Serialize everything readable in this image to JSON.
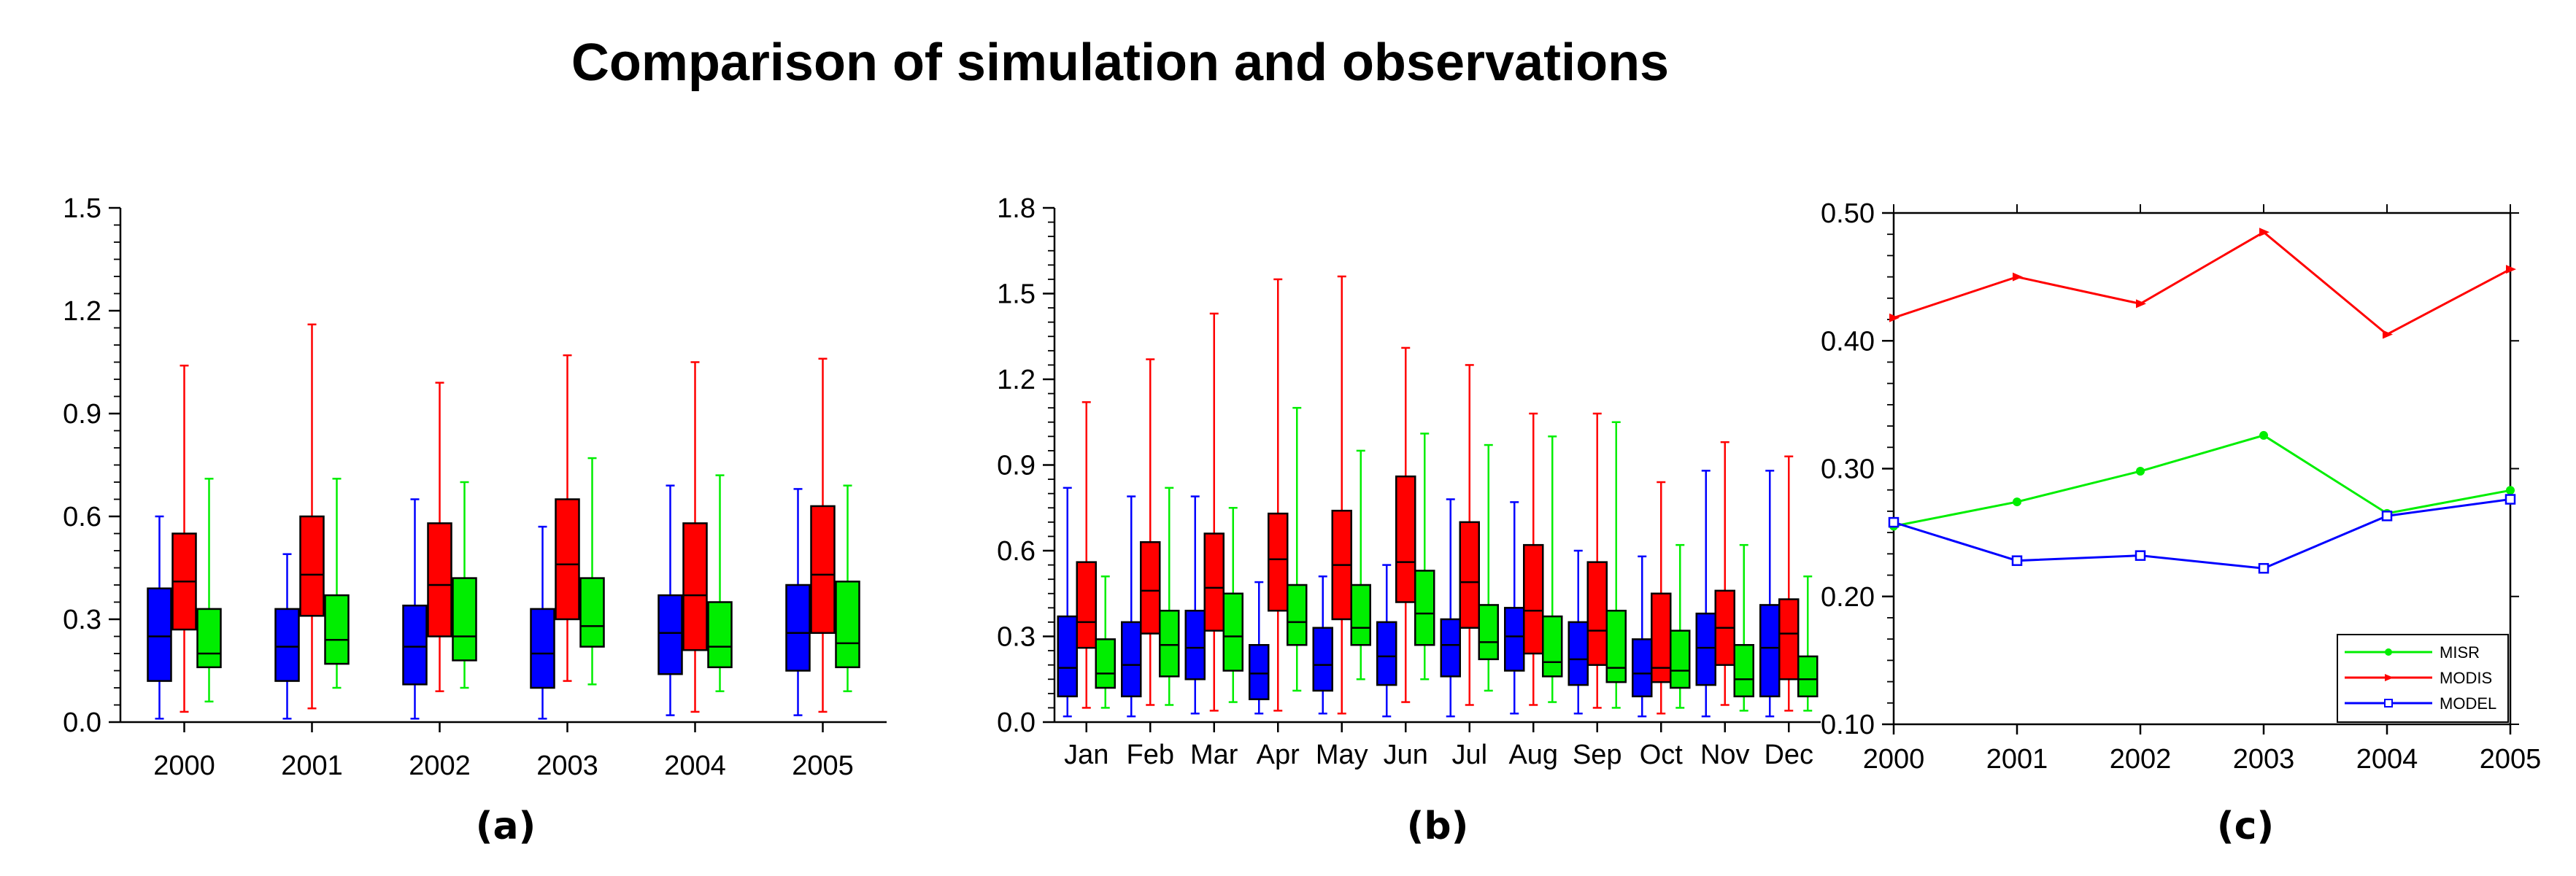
{
  "title": "Comparison of simulation and observations",
  "colors": {
    "MISR": "#00ee00",
    "MODIS": "#ff0000",
    "MODEL": "#0000ff",
    "axis": "#000000"
  },
  "chart_data": [
    {
      "panel_label": "(a)",
      "type": "box",
      "ylim": [
        0,
        1.5
      ],
      "y_ticks": [
        "0.0",
        "0.3",
        "0.6",
        "0.9",
        "1.2",
        "1.5"
      ],
      "categories": [
        "2000",
        "2001",
        "2002",
        "2003",
        "2004",
        "2005"
      ],
      "series": [
        {
          "name": "MODEL",
          "boxes": [
            {
              "min": 0.01,
              "q1": 0.12,
              "median": 0.25,
              "q3": 0.39,
              "max": 0.6
            },
            {
              "min": 0.01,
              "q1": 0.12,
              "median": 0.22,
              "q3": 0.33,
              "max": 0.49
            },
            {
              "min": 0.01,
              "q1": 0.11,
              "median": 0.22,
              "q3": 0.34,
              "max": 0.65
            },
            {
              "min": 0.01,
              "q1": 0.1,
              "median": 0.2,
              "q3": 0.33,
              "max": 0.57
            },
            {
              "min": 0.02,
              "q1": 0.14,
              "median": 0.26,
              "q3": 0.37,
              "max": 0.69
            },
            {
              "min": 0.02,
              "q1": 0.15,
              "median": 0.26,
              "q3": 0.4,
              "max": 0.68
            }
          ]
        },
        {
          "name": "MODIS",
          "boxes": [
            {
              "min": 0.03,
              "q1": 0.27,
              "median": 0.41,
              "q3": 0.55,
              "max": 1.04
            },
            {
              "min": 0.04,
              "q1": 0.31,
              "median": 0.43,
              "q3": 0.6,
              "max": 1.16
            },
            {
              "min": 0.09,
              "q1": 0.25,
              "median": 0.4,
              "q3": 0.58,
              "max": 0.99
            },
            {
              "min": 0.12,
              "q1": 0.3,
              "median": 0.46,
              "q3": 0.65,
              "max": 1.07
            },
            {
              "min": 0.03,
              "q1": 0.21,
              "median": 0.37,
              "q3": 0.58,
              "max": 1.05
            },
            {
              "min": 0.03,
              "q1": 0.26,
              "median": 0.43,
              "q3": 0.63,
              "max": 1.06
            }
          ]
        },
        {
          "name": "MISR",
          "boxes": [
            {
              "min": 0.06,
              "q1": 0.16,
              "median": 0.2,
              "q3": 0.33,
              "max": 0.71
            },
            {
              "min": 0.1,
              "q1": 0.17,
              "median": 0.24,
              "q3": 0.37,
              "max": 0.71
            },
            {
              "min": 0.1,
              "q1": 0.18,
              "median": 0.25,
              "q3": 0.42,
              "max": 0.7
            },
            {
              "min": 0.11,
              "q1": 0.22,
              "median": 0.28,
              "q3": 0.42,
              "max": 0.77
            },
            {
              "min": 0.09,
              "q1": 0.16,
              "median": 0.22,
              "q3": 0.35,
              "max": 0.72
            },
            {
              "min": 0.09,
              "q1": 0.16,
              "median": 0.23,
              "q3": 0.41,
              "max": 0.69
            }
          ]
        }
      ]
    },
    {
      "panel_label": "(b)",
      "type": "box",
      "ylim": [
        0,
        1.8
      ],
      "y_ticks": [
        "0.0",
        "0.3",
        "0.6",
        "0.9",
        "1.2",
        "1.5",
        "1.8"
      ],
      "categories": [
        "Jan",
        "Feb",
        "Mar",
        "Apr",
        "May",
        "Jun",
        "Jul",
        "Aug",
        "Sep",
        "Oct",
        "Nov",
        "Dec"
      ],
      "series": [
        {
          "name": "MODEL",
          "boxes": [
            {
              "min": 0.02,
              "q1": 0.09,
              "median": 0.19,
              "q3": 0.37,
              "max": 0.82
            },
            {
              "min": 0.02,
              "q1": 0.09,
              "median": 0.2,
              "q3": 0.35,
              "max": 0.79
            },
            {
              "min": 0.03,
              "q1": 0.15,
              "median": 0.26,
              "q3": 0.39,
              "max": 0.79
            },
            {
              "min": 0.03,
              "q1": 0.08,
              "median": 0.17,
              "q3": 0.27,
              "max": 0.49
            },
            {
              "min": 0.03,
              "q1": 0.11,
              "median": 0.2,
              "q3": 0.33,
              "max": 0.51
            },
            {
              "min": 0.02,
              "q1": 0.13,
              "median": 0.23,
              "q3": 0.35,
              "max": 0.55
            },
            {
              "min": 0.02,
              "q1": 0.16,
              "median": 0.27,
              "q3": 0.36,
              "max": 0.78
            },
            {
              "min": 0.03,
              "q1": 0.18,
              "median": 0.3,
              "q3": 0.4,
              "max": 0.77
            },
            {
              "min": 0.03,
              "q1": 0.13,
              "median": 0.22,
              "q3": 0.35,
              "max": 0.6
            },
            {
              "min": 0.02,
              "q1": 0.09,
              "median": 0.17,
              "q3": 0.29,
              "max": 0.58
            },
            {
              "min": 0.02,
              "q1": 0.13,
              "median": 0.26,
              "q3": 0.38,
              "max": 0.88
            },
            {
              "min": 0.02,
              "q1": 0.09,
              "median": 0.26,
              "q3": 0.41,
              "max": 0.88
            }
          ]
        },
        {
          "name": "MODIS",
          "boxes": [
            {
              "min": 0.05,
              "q1": 0.26,
              "median": 0.35,
              "q3": 0.56,
              "max": 1.12
            },
            {
              "min": 0.06,
              "q1": 0.31,
              "median": 0.46,
              "q3": 0.63,
              "max": 1.27
            },
            {
              "min": 0.04,
              "q1": 0.32,
              "median": 0.47,
              "q3": 0.66,
              "max": 1.43
            },
            {
              "min": 0.04,
              "q1": 0.39,
              "median": 0.57,
              "q3": 0.73,
              "max": 1.55
            },
            {
              "min": 0.03,
              "q1": 0.36,
              "median": 0.55,
              "q3": 0.74,
              "max": 1.56
            },
            {
              "min": 0.07,
              "q1": 0.42,
              "median": 0.56,
              "q3": 0.86,
              "max": 1.31
            },
            {
              "min": 0.06,
              "q1": 0.33,
              "median": 0.49,
              "q3": 0.7,
              "max": 1.25
            },
            {
              "min": 0.06,
              "q1": 0.24,
              "median": 0.39,
              "q3": 0.62,
              "max": 1.08
            },
            {
              "min": 0.05,
              "q1": 0.2,
              "median": 0.32,
              "q3": 0.56,
              "max": 1.08
            },
            {
              "min": 0.03,
              "q1": 0.14,
              "median": 0.19,
              "q3": 0.45,
              "max": 0.84
            },
            {
              "min": 0.06,
              "q1": 0.2,
              "median": 0.33,
              "q3": 0.46,
              "max": 0.98
            },
            {
              "min": 0.04,
              "q1": 0.15,
              "median": 0.31,
              "q3": 0.43,
              "max": 0.93
            }
          ]
        },
        {
          "name": "MISR",
          "boxes": [
            {
              "min": 0.05,
              "q1": 0.12,
              "median": 0.17,
              "q3": 0.29,
              "max": 0.51
            },
            {
              "min": 0.06,
              "q1": 0.16,
              "median": 0.27,
              "q3": 0.39,
              "max": 0.82
            },
            {
              "min": 0.07,
              "q1": 0.18,
              "median": 0.3,
              "q3": 0.45,
              "max": 0.75
            },
            {
              "min": 0.11,
              "q1": 0.27,
              "median": 0.35,
              "q3": 0.48,
              "max": 1.1
            },
            {
              "min": 0.15,
              "q1": 0.27,
              "median": 0.33,
              "q3": 0.48,
              "max": 0.95
            },
            {
              "min": 0.15,
              "q1": 0.27,
              "median": 0.38,
              "q3": 0.53,
              "max": 1.01
            },
            {
              "min": 0.11,
              "q1": 0.22,
              "median": 0.28,
              "q3": 0.41,
              "max": 0.97
            },
            {
              "min": 0.07,
              "q1": 0.16,
              "median": 0.21,
              "q3": 0.37,
              "max": 1.0
            },
            {
              "min": 0.05,
              "q1": 0.14,
              "median": 0.19,
              "q3": 0.39,
              "max": 1.05
            },
            {
              "min": 0.05,
              "q1": 0.12,
              "median": 0.18,
              "q3": 0.32,
              "max": 0.62
            },
            {
              "min": 0.04,
              "q1": 0.09,
              "median": 0.15,
              "q3": 0.27,
              "max": 0.62
            },
            {
              "min": 0.04,
              "q1": 0.09,
              "median": 0.15,
              "q3": 0.23,
              "max": 0.51
            }
          ]
        }
      ]
    },
    {
      "panel_label": "(c)",
      "type": "line",
      "ylim": [
        0.1,
        0.5
      ],
      "y_ticks": [
        "0.10",
        "0.20",
        "0.30",
        "0.40",
        "0.50"
      ],
      "categories": [
        "2000",
        "2001",
        "2002",
        "2003",
        "2004",
        "2005"
      ],
      "series": [
        {
          "name": "MISR",
          "marker": "circle",
          "values": [
            0.255,
            0.274,
            0.298,
            0.326,
            0.265,
            0.283
          ]
        },
        {
          "name": "MODIS",
          "marker": "triangle",
          "values": [
            0.418,
            0.45,
            0.429,
            0.485,
            0.405,
            0.456
          ]
        },
        {
          "name": "MODEL",
          "marker": "square",
          "values": [
            0.258,
            0.228,
            0.232,
            0.222,
            0.263,
            0.276
          ]
        }
      ],
      "legend_position": "bottom-right"
    }
  ]
}
